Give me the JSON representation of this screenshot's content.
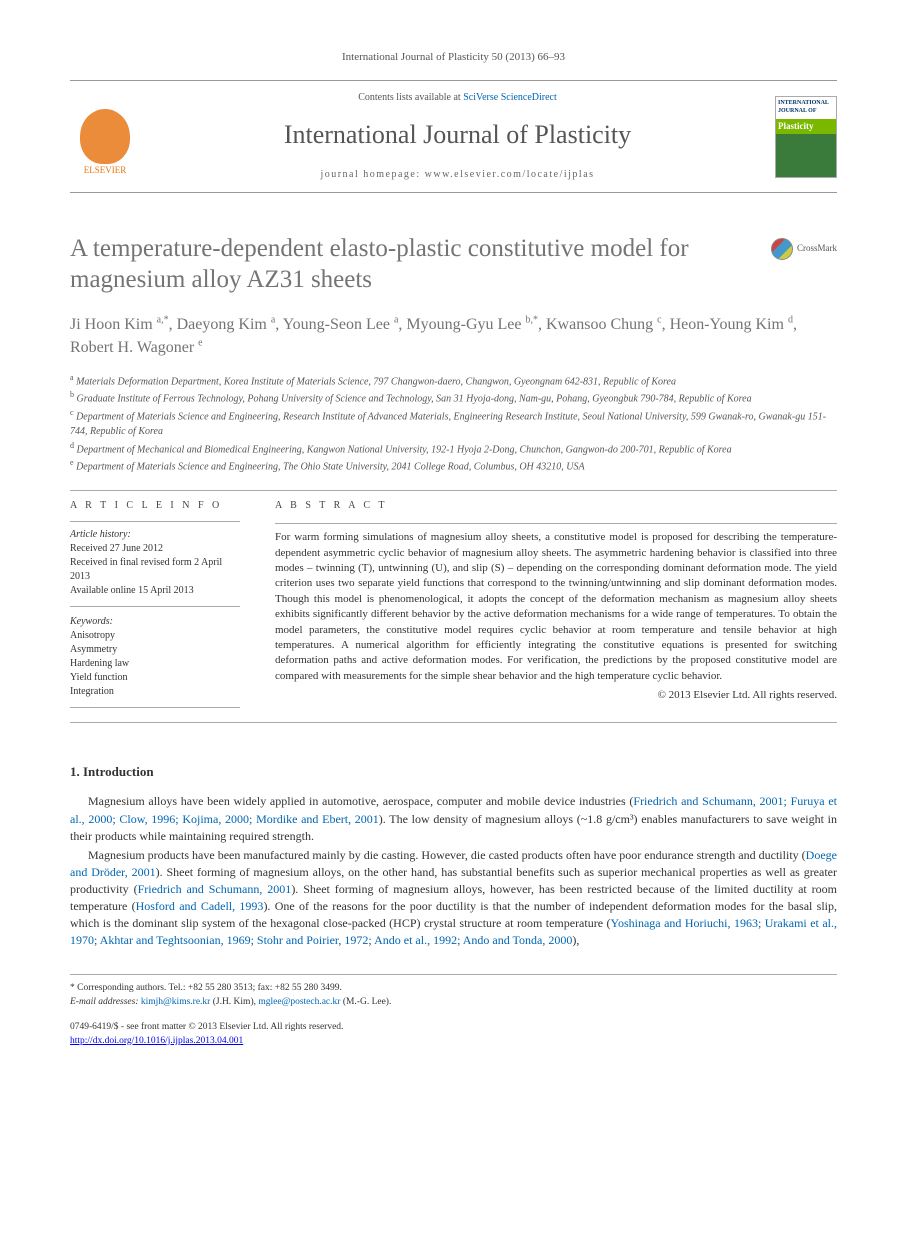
{
  "top_reference": "International Journal of Plasticity 50 (2013) 66–93",
  "masthead": {
    "contents_prefix": "Contents lists available at ",
    "contents_link": "SciVerse ScienceDirect",
    "journal": "International Journal of Plasticity",
    "homepage_label": "journal homepage: www.elsevier.com/locate/ijplas",
    "publisher": "ELSEVIER",
    "cover_top": "INTERNATIONAL JOURNAL OF",
    "cover_bar": "Plasticity"
  },
  "crossmark": "CrossMark",
  "title": "A temperature-dependent elasto-plastic constitutive model for magnesium alloy AZ31 sheets",
  "authors_html": "Ji Hoon Kim <sup>a,*</sup>, Daeyong Kim <sup>a</sup>, Young-Seon Lee <sup>a</sup>, Myoung-Gyu Lee <sup>b,*</sup>, Kwansoo Chung <sup>c</sup>, Heon-Young Kim <sup>d</sup>, Robert H. Wagoner <sup>e</sup>",
  "affiliations": [
    "Materials Deformation Department, Korea Institute of Materials Science, 797 Changwon-daero, Changwon, Gyeongnam 642-831, Republic of Korea",
    "Graduate Institute of Ferrous Technology, Pohang University of Science and Technology, San 31 Hyoja-dong, Nam-gu, Pohang, Gyeongbuk 790-784, Republic of Korea",
    "Department of Materials Science and Engineering, Research Institute of Advanced Materials, Engineering Research Institute, Seoul National University, 599 Gwanak-ro, Gwanak-gu 151-744, Republic of Korea",
    "Department of Mechanical and Biomedical Engineering, Kangwon National University, 192-1 Hyoja 2-Dong, Chunchon, Gangwon-do 200-701, Republic of Korea",
    "Department of Materials Science and Engineering, The Ohio State University, 2041 College Road, Columbus, OH 43210, USA"
  ],
  "aff_markers": [
    "a",
    "b",
    "c",
    "d",
    "e"
  ],
  "info": {
    "heading": "A R T I C L E   I N F O",
    "history_label": "Article history:",
    "history": [
      "Received 27 June 2012",
      "Received in final revised form 2 April 2013",
      "Available online 15 April 2013"
    ],
    "keywords_label": "Keywords:",
    "keywords": [
      "Anisotropy",
      "Asymmetry",
      "Hardening law",
      "Yield function",
      "Integration"
    ]
  },
  "abstract": {
    "heading": "A B S T R A C T",
    "text": "For warm forming simulations of magnesium alloy sheets, a constitutive model is proposed for describing the temperature-dependent asymmetric cyclic behavior of magnesium alloy sheets. The asymmetric hardening behavior is classified into three modes – twinning (T), untwinning (U), and slip (S) – depending on the corresponding dominant deformation mode. The yield criterion uses two separate yield functions that correspond to the twinning/untwinning and slip dominant deformation modes. Though this model is phenomenological, it adopts the concept of the deformation mechanism as magnesium alloy sheets exhibits significantly different behavior by the active deformation mechanisms for a wide range of temperatures. To obtain the model parameters, the constitutive model requires cyclic behavior at room temperature and tensile behavior at high temperatures. A numerical algorithm for efficiently integrating the constitutive equations is presented for switching deformation paths and active deformation modes. For verification, the predictions by the proposed constitutive model are compared with measurements for the simple shear behavior and the high temperature cyclic behavior.",
    "copyright": "© 2013 Elsevier Ltd. All rights reserved."
  },
  "section1": {
    "heading": "1. Introduction",
    "p1_a": "Magnesium alloys have been widely applied in automotive, aerospace, computer and mobile device industries (",
    "p1_link1": "Friedrich and Schumann, 2001; Furuya et al., 2000; Clow, 1996; Kojima, 2000; Mordike and Ebert, 2001",
    "p1_b": "). The low density of magnesium alloys (~1.8 g/cm³) enables manufacturers to save weight in their products while maintaining required strength.",
    "p2_a": "Magnesium products have been manufactured mainly by die casting. However, die casted products often have poor endurance strength and ductility (",
    "p2_link1": "Doege and Dröder, 2001",
    "p2_b": "). Sheet forming of magnesium alloys, on the other hand, has substantial benefits such as superior mechanical properties as well as greater productivity (",
    "p2_link2": "Friedrich and Schumann, 2001",
    "p2_c": "). Sheet forming of magnesium alloys, however, has been restricted because of the limited ductility at room temperature (",
    "p2_link3": "Hosford and Cadell, 1993",
    "p2_d": "). One of the reasons for the poor ductility is that the number of independent deformation modes for the basal slip, which is the dominant slip system of the hexagonal close-packed (HCP) crystal structure at room temperature (",
    "p2_link4": "Yoshinaga and Horiuchi, 1963; Urakami et al., 1970; Akhtar and Teghtsoonian, 1969; Stohr and Poirier, 1972; Ando et al., 1992; Ando and Tonda, 2000",
    "p2_e": "),"
  },
  "footnotes": {
    "corr": "* Corresponding authors. Tel.: +82 55 280 3513; fax: +82 55 280 3499.",
    "email_label": "E-mail addresses: ",
    "email1": "kimjh@kims.re.kr",
    "email1_who": " (J.H. Kim), ",
    "email2": "mglee@postech.ac.kr",
    "email2_who": " (M.-G. Lee)."
  },
  "bottom": {
    "line1": "0749-6419/$ - see front matter © 2013 Elsevier Ltd. All rights reserved.",
    "doi": "http://dx.doi.org/10.1016/j.ijplas.2013.04.001"
  }
}
